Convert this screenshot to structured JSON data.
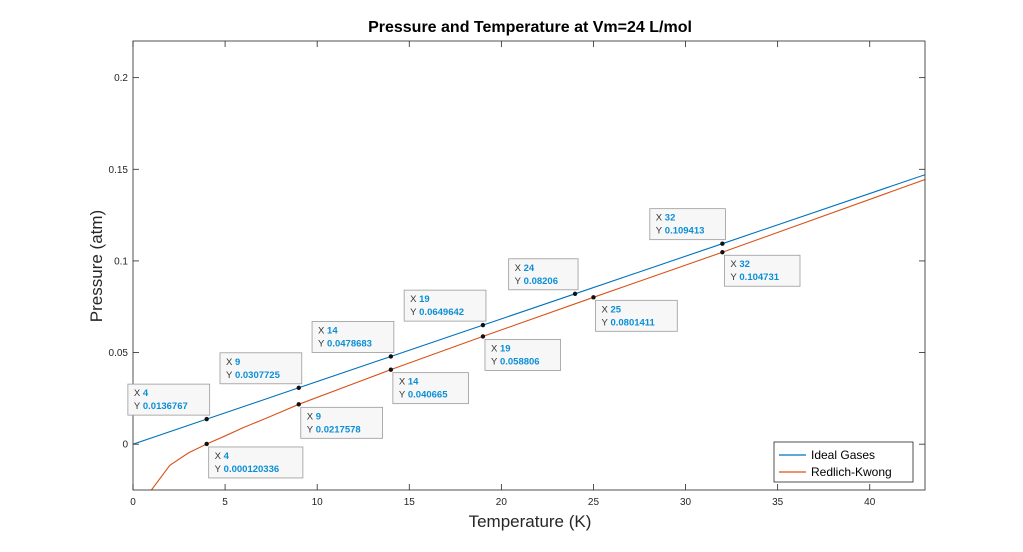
{
  "chart_data": {
    "type": "line",
    "title": "Pressure and Temperature at Vm=24 L/mol",
    "xlabel": "Temperature (K)",
    "ylabel": "Pressure (atm)",
    "xlim": [
      0,
      43
    ],
    "ylim": [
      -0.025,
      0.22
    ],
    "xticks": [
      "0",
      "5",
      "10",
      "15",
      "20",
      "25",
      "30",
      "35",
      "40"
    ],
    "yticks": [
      "0",
      "0.05",
      "0.1",
      "0.15",
      "0.2"
    ],
    "grid": false,
    "legend_location": "bottom-right",
    "series": [
      {
        "name": "Ideal Gases",
        "color": "#0072bd",
        "x": [
          0,
          4,
          9,
          14,
          19,
          24,
          32,
          43
        ],
        "y": [
          0,
          0.0136767,
          0.0307725,
          0.0478683,
          0.0649642,
          0.08206,
          0.109413,
          0.14703
        ]
      },
      {
        "name": "Redlich-Kwong",
        "color": "#d95319",
        "x": [
          1,
          2,
          3,
          4,
          5,
          6,
          7,
          8,
          9,
          14,
          19,
          25,
          32,
          43
        ],
        "y": [
          -0.025,
          -0.0115,
          -0.0048,
          0.000120336,
          0.0045,
          0.0091,
          0.0132,
          0.0174,
          0.0217578,
          0.040665,
          0.058806,
          0.0801411,
          0.104731,
          0.1444
        ]
      }
    ],
    "annotations": [
      {
        "series": 0,
        "x": 4,
        "y": 0.0136767,
        "x_label": "4",
        "y_label": "0.0136767",
        "side": "above"
      },
      {
        "series": 0,
        "x": 9,
        "y": 0.0307725,
        "x_label": "9",
        "y_label": "0.0307725",
        "side": "above"
      },
      {
        "series": 0,
        "x": 14,
        "y": 0.0478683,
        "x_label": "14",
        "y_label": "0.0478683",
        "side": "above"
      },
      {
        "series": 0,
        "x": 19,
        "y": 0.0649642,
        "x_label": "19",
        "y_label": "0.0649642",
        "side": "above"
      },
      {
        "series": 0,
        "x": 24,
        "y": 0.08206,
        "x_label": "24",
        "y_label": "0.08206",
        "side": "above"
      },
      {
        "series": 0,
        "x": 32,
        "y": 0.109413,
        "x_label": "32",
        "y_label": "0.109413",
        "side": "above"
      },
      {
        "series": 1,
        "x": 4,
        "y": 0.000120336,
        "x_label": "4",
        "y_label": "0.000120336",
        "side": "below"
      },
      {
        "series": 1,
        "x": 9,
        "y": 0.0217578,
        "x_label": "9",
        "y_label": "0.0217578",
        "side": "below"
      },
      {
        "series": 1,
        "x": 14,
        "y": 0.040665,
        "x_label": "14",
        "y_label": "0.040665",
        "side": "below"
      },
      {
        "series": 1,
        "x": 19,
        "y": 0.058806,
        "x_label": "19",
        "y_label": "0.058806",
        "side": "below"
      },
      {
        "series": 1,
        "x": 25,
        "y": 0.0801411,
        "x_label": "25",
        "y_label": "0.0801411",
        "side": "below"
      },
      {
        "series": 1,
        "x": 32,
        "y": 0.104731,
        "x_label": "32",
        "y_label": "0.104731",
        "side": "below"
      }
    ],
    "tip_x_prefix": "X",
    "tip_y_prefix": "Y"
  }
}
